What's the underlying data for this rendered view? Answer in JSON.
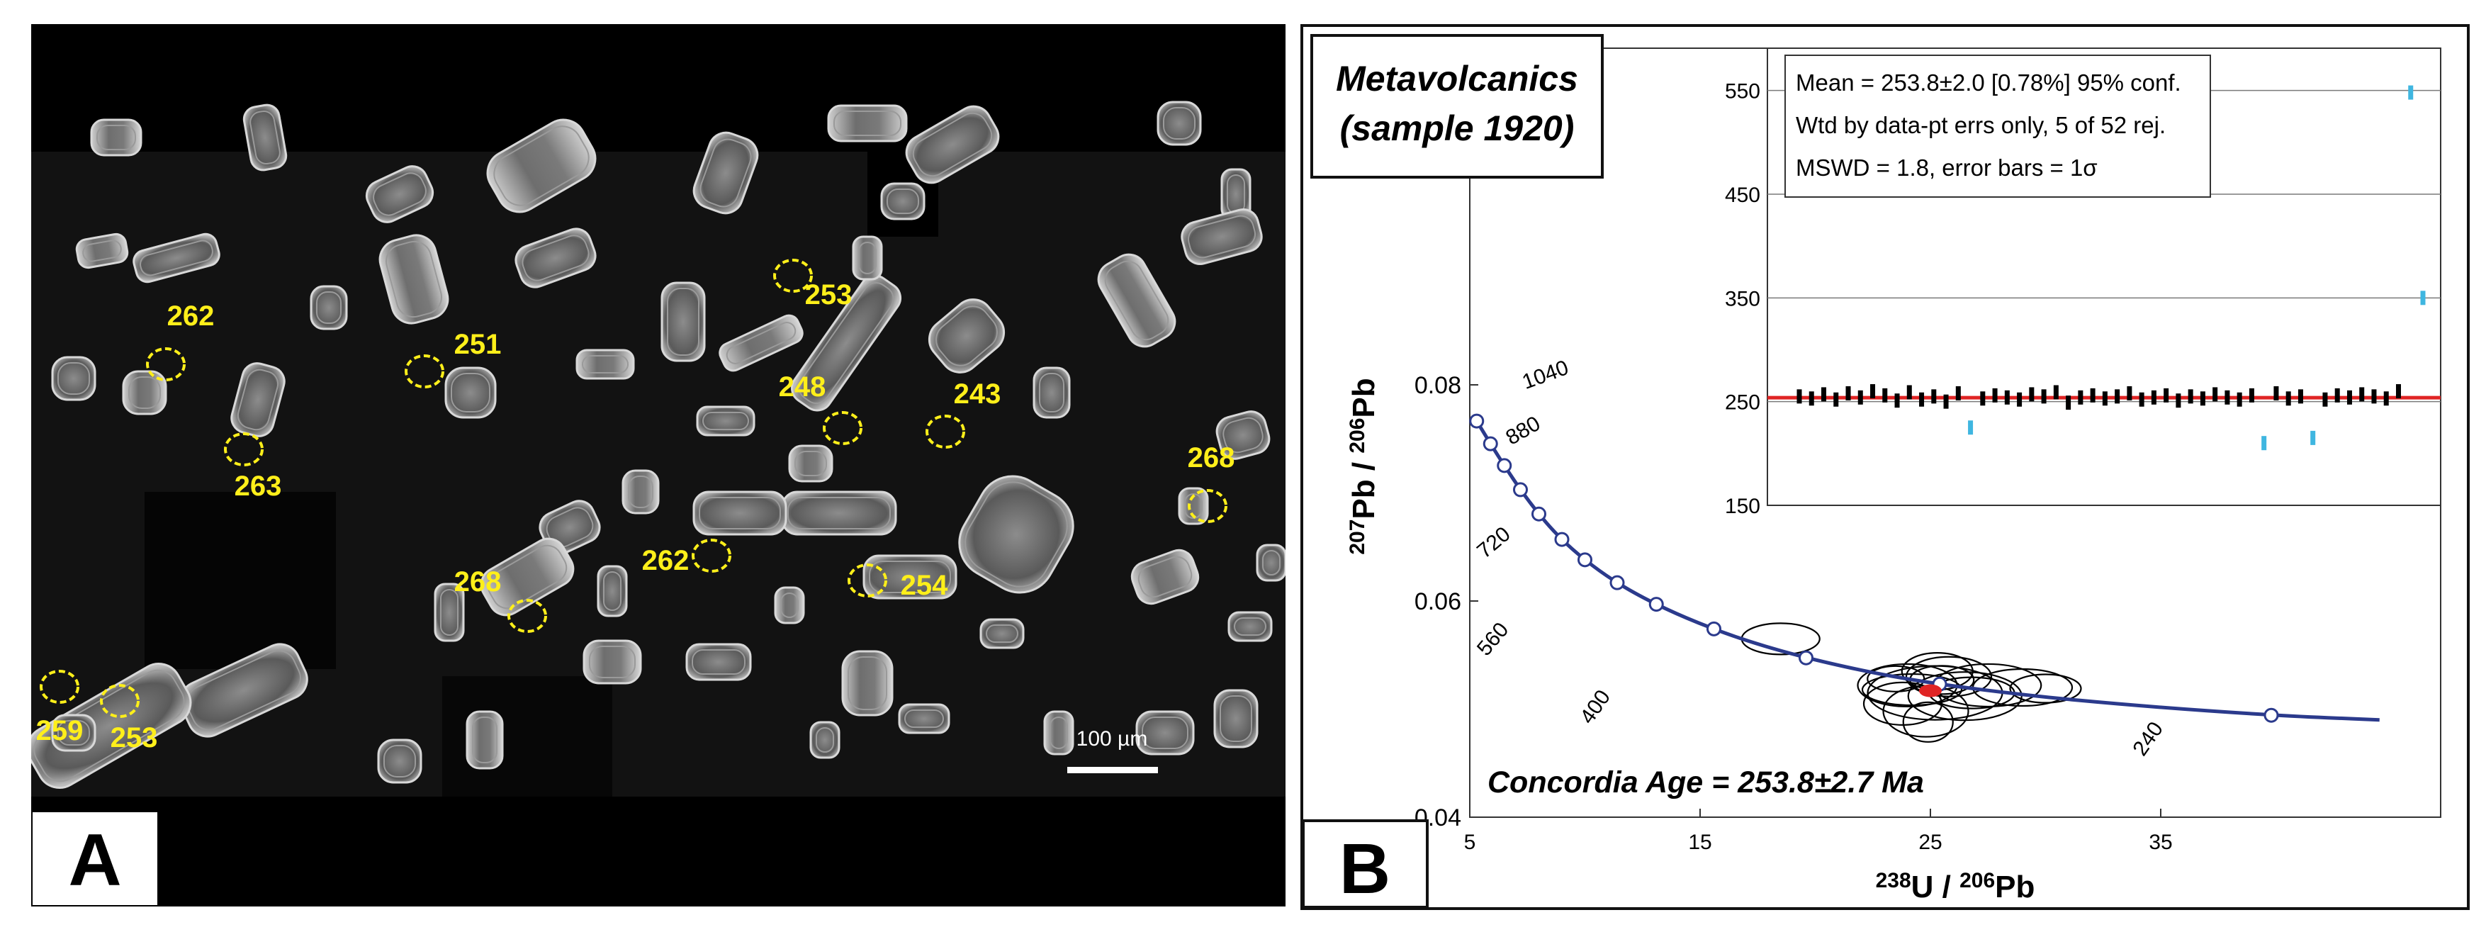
{
  "panel_a": {
    "letter": "A",
    "scale_label": "100 µm",
    "label_color": "#ffef1a",
    "spots": [
      {
        "label": "262"
      },
      {
        "label": "251"
      },
      {
        "label": "253"
      },
      {
        "label": "248"
      },
      {
        "label": "243"
      },
      {
        "label": "268"
      },
      {
        "label": "263"
      },
      {
        "label": "262"
      },
      {
        "label": "254"
      },
      {
        "label": "268"
      },
      {
        "label": "259"
      },
      {
        "label": "253"
      }
    ]
  },
  "panel_b": {
    "letter": "B",
    "title_line1": "Metavolcanics",
    "title_line2": "(sample 1920)",
    "concordia_age": "Concordia Age = 253.8±2.7 Ma",
    "colors": {
      "curve": "#2b3a8c",
      "mean_line": "#e02424",
      "rejected": "#3fb6e0",
      "accepted": "#000000"
    }
  },
  "chart_data": [
    {
      "type": "line",
      "name": "Concordia diagram",
      "xlabel": "238U / 206Pb",
      "ylabel": "207Pb / 206Pb",
      "xlim": [
        5,
        45
      ],
      "ylim": [
        0.04,
        0.09
      ],
      "x_ticks": [
        5,
        15,
        25,
        35
      ],
      "y_ticks": [
        0.04,
        0.06,
        0.08
      ],
      "concordia_curve": {
        "x": [
          5.2,
          6.0,
          7.0,
          8.0,
          9.0,
          10.0,
          11.5,
          13.0,
          15.5,
          19.5,
          25.0,
          31.0,
          40.0,
          45.0
        ],
        "y": [
          0.077,
          0.0735,
          0.0702,
          0.068,
          0.0657,
          0.0635,
          0.06,
          0.058,
          0.056,
          0.0538,
          0.0518,
          0.0505,
          0.049,
          0.0485
        ]
      },
      "age_markers": [
        {
          "age": "1040",
          "x": 5.2,
          "y": 0.077
        },
        {
          "age": "880",
          "x": 6.0,
          "y": 0.0735
        },
        {
          "age": "720",
          "x": 7.0,
          "y": 0.0702
        },
        {
          "age": "560",
          "x": 8.0,
          "y": 0.068
        },
        {
          "age": "400",
          "x": 9.0,
          "y": 0.0657
        },
        {
          "age": "240",
          "x": 10.0,
          "y": 0.0635
        }
      ],
      "marker_points": {
        "x": [
          5.2,
          6.0,
          7.0,
          8.0,
          9.0,
          10.0,
          11.5,
          13.0,
          15.5,
          19.5,
          25.0,
          40.0
        ],
        "y": [
          0.077,
          0.0735,
          0.0702,
          0.068,
          0.0657,
          0.0635,
          0.06,
          0.058,
          0.056,
          0.0538,
          0.0518,
          0.049
        ]
      },
      "error_ellipses": {
        "x": [
          18.5,
          24.5,
          26.5,
          28.0,
          25.5,
          29.0,
          23.5,
          25.0,
          27.0,
          24.5,
          26.0
        ],
        "y": [
          0.0565,
          0.053,
          0.0528,
          0.0522,
          0.0512,
          0.0518,
          0.0505,
          0.05,
          0.051,
          0.052,
          0.0515
        ]
      },
      "concordia_point": {
        "x": 25.0,
        "y": 0.0517
      }
    },
    {
      "type": "scatter",
      "name": "Weighted mean age (inset)",
      "title": "",
      "ylabel": "",
      "ylim": [
        150,
        560
      ],
      "y_ticks": [
        150,
        250,
        350,
        450,
        550
      ],
      "mean": 253.8,
      "stats": [
        "Mean = 253.8±2.0  [0.78%]  95% conf.",
        "Wtd by data-pt errs only, 5 of 52 rej.",
        "MSWD = 1.8, error bars = 1σ"
      ],
      "accepted_values": [
        255,
        253,
        257,
        252,
        258,
        254,
        260,
        256,
        251,
        259,
        252,
        255,
        250,
        258,
        253,
        256,
        254,
        252,
        257,
        255,
        259,
        249,
        254,
        256,
        253,
        255,
        258,
        252,
        254,
        256,
        251,
        255,
        253,
        257,
        254,
        252,
        256,
        258,
        253,
        255,
        252,
        256,
        254,
        257,
        255,
        253,
        260
      ],
      "rejected_values": [
        {
          "index": 14,
          "value": 225
        },
        {
          "index": 38,
          "value": 210
        },
        {
          "index": 42,
          "value": 215
        },
        {
          "index": 50,
          "value": 548
        },
        {
          "index": 51,
          "value": 350
        }
      ]
    }
  ]
}
